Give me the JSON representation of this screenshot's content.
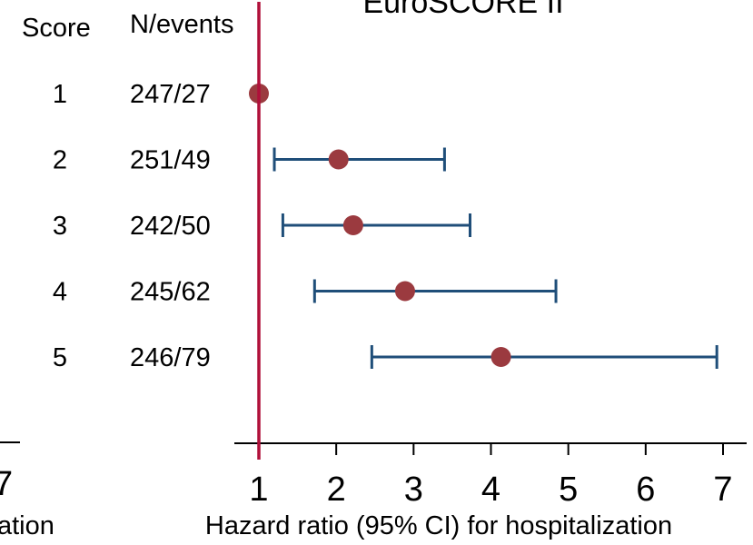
{
  "chart_data": {
    "type": "forest",
    "title": "EuroSCORE II",
    "columns": {
      "score": "Score",
      "n_events": "N/events"
    },
    "rows": [
      {
        "score": "1",
        "n_events": "247/27",
        "hr": 1.0,
        "lo": null,
        "hi": null
      },
      {
        "score": "2",
        "n_events": "251/49",
        "hr": 2.03,
        "lo": 1.2,
        "hi": 3.4
      },
      {
        "score": "3",
        "n_events": "242/50",
        "hr": 2.22,
        "lo": 1.31,
        "hi": 3.73
      },
      {
        "score": "4",
        "n_events": "245/62",
        "hr": 2.89,
        "lo": 1.72,
        "hi": 4.84
      },
      {
        "score": "5",
        "n_events": "246/79",
        "hr": 4.13,
        "lo": 2.46,
        "hi": 6.92
      }
    ],
    "xlabel": "Hazard ratio (95% CI) for hospitalization",
    "xlim": [
      0.7,
      7.3
    ],
    "xticks": [
      1,
      2,
      3,
      4,
      5,
      6,
      7
    ],
    "xtick_labels": [
      "1",
      "2",
      "3",
      "4",
      "5",
      "6",
      "7"
    ],
    "reference_line": 1,
    "colors": {
      "point": "#9b3a3f",
      "ci": "#1f4e79",
      "reference": "#b0103a",
      "axis": "#000000"
    }
  },
  "left_panel_fragment": {
    "tick_label": "7",
    "axis_label": "ation"
  }
}
